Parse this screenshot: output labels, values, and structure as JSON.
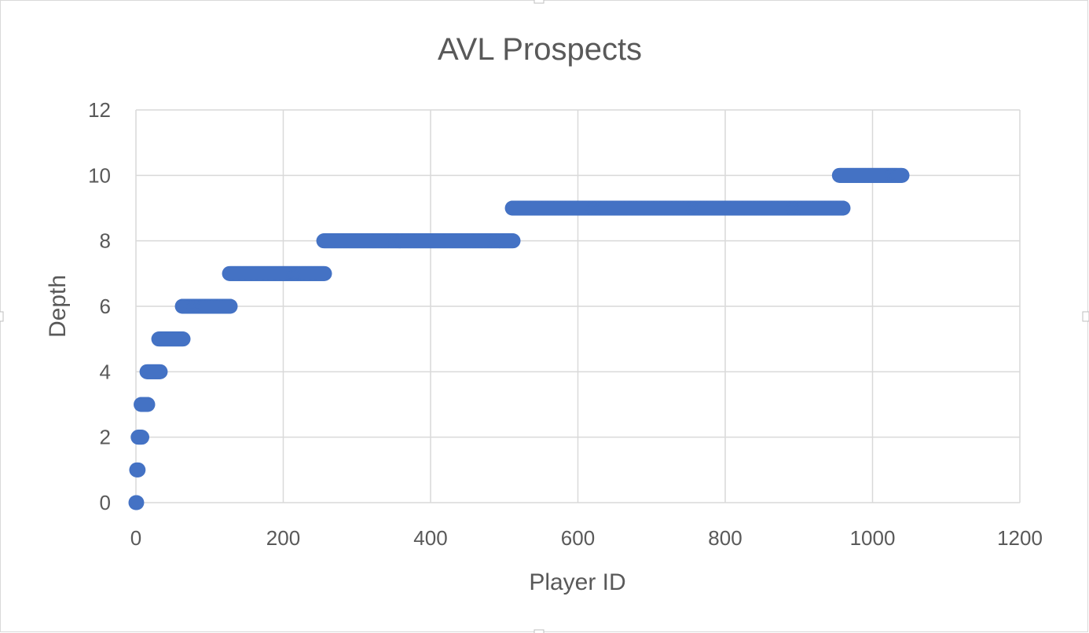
{
  "chart_data": {
    "type": "scatter",
    "title": "AVL Prospects",
    "xlabel": "Player ID",
    "ylabel": "Depth",
    "xlim": [
      0,
      1200
    ],
    "ylim": [
      0,
      12
    ],
    "x_ticks": [
      0,
      200,
      400,
      600,
      800,
      1000,
      1200
    ],
    "y_ticks": [
      0,
      2,
      4,
      6,
      8,
      10,
      12
    ],
    "grid": true,
    "legend": "none",
    "marker_color": "#4472C4",
    "series": [
      {
        "points_description_runs": [
          {
            "depth": 0,
            "x_start": 0,
            "x_end": 1
          },
          {
            "depth": 1,
            "x_start": 1,
            "x_end": 3
          },
          {
            "depth": 2,
            "x_start": 3,
            "x_end": 8
          },
          {
            "depth": 3,
            "x_start": 7,
            "x_end": 16
          },
          {
            "depth": 4,
            "x_start": 15,
            "x_end": 33
          },
          {
            "depth": 5,
            "x_start": 31,
            "x_end": 64
          },
          {
            "depth": 6,
            "x_start": 63,
            "x_end": 128
          },
          {
            "depth": 7,
            "x_start": 127,
            "x_end": 256
          },
          {
            "depth": 8,
            "x_start": 255,
            "x_end": 512
          },
          {
            "depth": 9,
            "x_start": 511,
            "x_end": 960
          },
          {
            "depth": 10,
            "x_start": 955,
            "x_end": 1040
          }
        ]
      }
    ]
  }
}
